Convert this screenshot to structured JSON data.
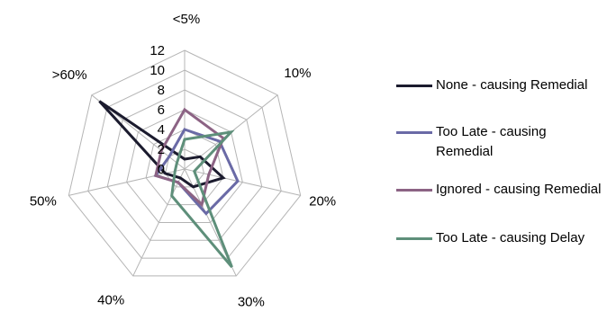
{
  "chart_data": {
    "type": "radar",
    "categories": [
      "<5%",
      "10%",
      "20%",
      "30%",
      "40%",
      "50%",
      ">60%"
    ],
    "rlim": [
      0,
      12
    ],
    "rticks": [
      "0",
      "2",
      "4",
      "6",
      "8",
      "10",
      "12"
    ],
    "grid": true,
    "legend_position": "right",
    "series": [
      {
        "name": "None - causing Remedial",
        "color": "#1b1b2e",
        "values": [
          1,
          2,
          4,
          2,
          1,
          2,
          11
        ]
      },
      {
        "name": "Too Late - causing Remedial",
        "color": "#6a6aa6",
        "values": [
          4,
          4.5,
          5.5,
          5,
          1.5,
          3,
          2
        ]
      },
      {
        "name": "Ignored - causing Remedial",
        "color": "#8c6384",
        "values": [
          6,
          5,
          2.5,
          4,
          1.5,
          3,
          3
        ]
      },
      {
        "name": "Too Late - causing Delay",
        "color": "#5e8f7a",
        "values": [
          3,
          6,
          1,
          11,
          3,
          1,
          1
        ]
      }
    ]
  }
}
